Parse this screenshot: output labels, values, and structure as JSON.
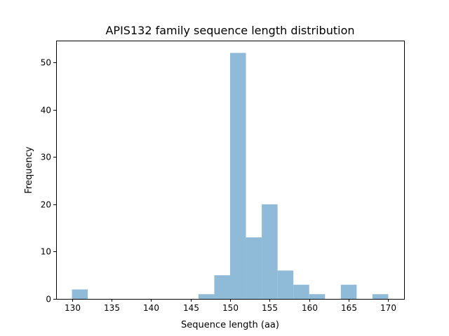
{
  "chart_data": {
    "type": "bar",
    "subtype": "histogram",
    "title": "APIS132 family sequence length distribution",
    "xlabel": "Sequence length (aa)",
    "ylabel": "Frequency",
    "xlim": [
      128,
      172
    ],
    "ylim": [
      0,
      54.6
    ],
    "xticks": [
      130,
      135,
      140,
      145,
      150,
      155,
      160,
      165,
      170
    ],
    "yticks": [
      0,
      10,
      20,
      30,
      40,
      50
    ],
    "bin_width": 2,
    "bins": [
      {
        "start": 130,
        "end": 132,
        "count": 2
      },
      {
        "start": 146,
        "end": 148,
        "count": 1
      },
      {
        "start": 148,
        "end": 150,
        "count": 5
      },
      {
        "start": 150,
        "end": 152,
        "count": 52
      },
      {
        "start": 152,
        "end": 154,
        "count": 13
      },
      {
        "start": 154,
        "end": 156,
        "count": 20
      },
      {
        "start": 156,
        "end": 158,
        "count": 6
      },
      {
        "start": 158,
        "end": 160,
        "count": 3
      },
      {
        "start": 160,
        "end": 162,
        "count": 1
      },
      {
        "start": 164,
        "end": 166,
        "count": 3
      },
      {
        "start": 168,
        "end": 170,
        "count": 1
      }
    ],
    "bar_color": "#8fbad8",
    "grid": false,
    "legend": "none"
  }
}
